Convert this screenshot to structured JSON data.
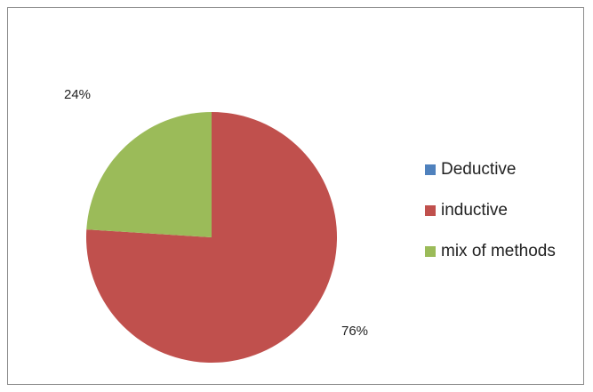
{
  "chart_data": {
    "type": "pie",
    "title": "",
    "categories": [
      "Deductive",
      "inductive",
      "mix of methods"
    ],
    "values": [
      0,
      76,
      24
    ],
    "value_unit": "%",
    "data_labels": [
      "",
      "76%",
      "24%"
    ],
    "colors": [
      "#4f81bd",
      "#c0504d",
      "#9bbb59"
    ],
    "legend_position": "right",
    "start_angle": "12 o'clock, clockwise"
  }
}
